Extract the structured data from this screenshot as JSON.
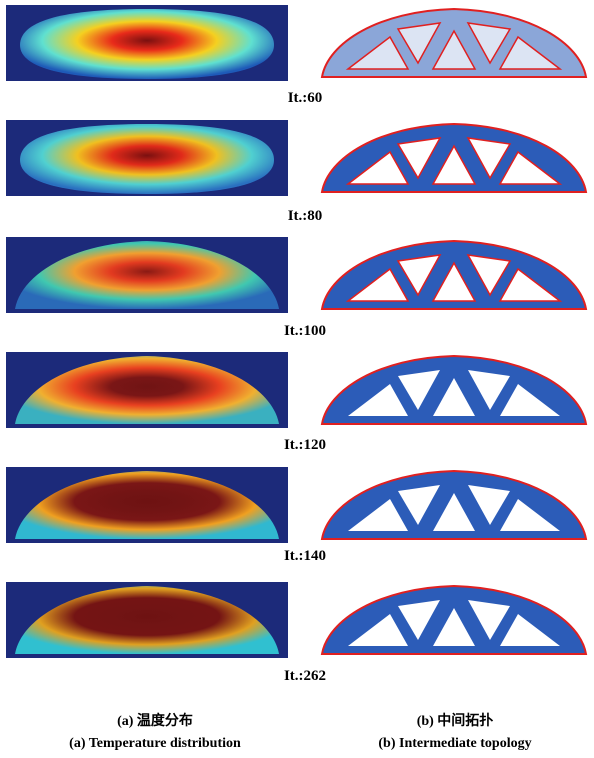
{
  "rows": [
    {
      "label": "It.:60"
    },
    {
      "label": "It.:80"
    },
    {
      "label": "It.:100"
    },
    {
      "label": "It.:120"
    },
    {
      "label": "It.:140"
    },
    {
      "label": "It.:262"
    }
  ],
  "captions": {
    "left_cn": "(a) 温度分布",
    "left_en": "(a) Temperature distribution",
    "right_cn": "(b) 中间拓扑",
    "right_en": "(b) Intermediate topology"
  }
}
